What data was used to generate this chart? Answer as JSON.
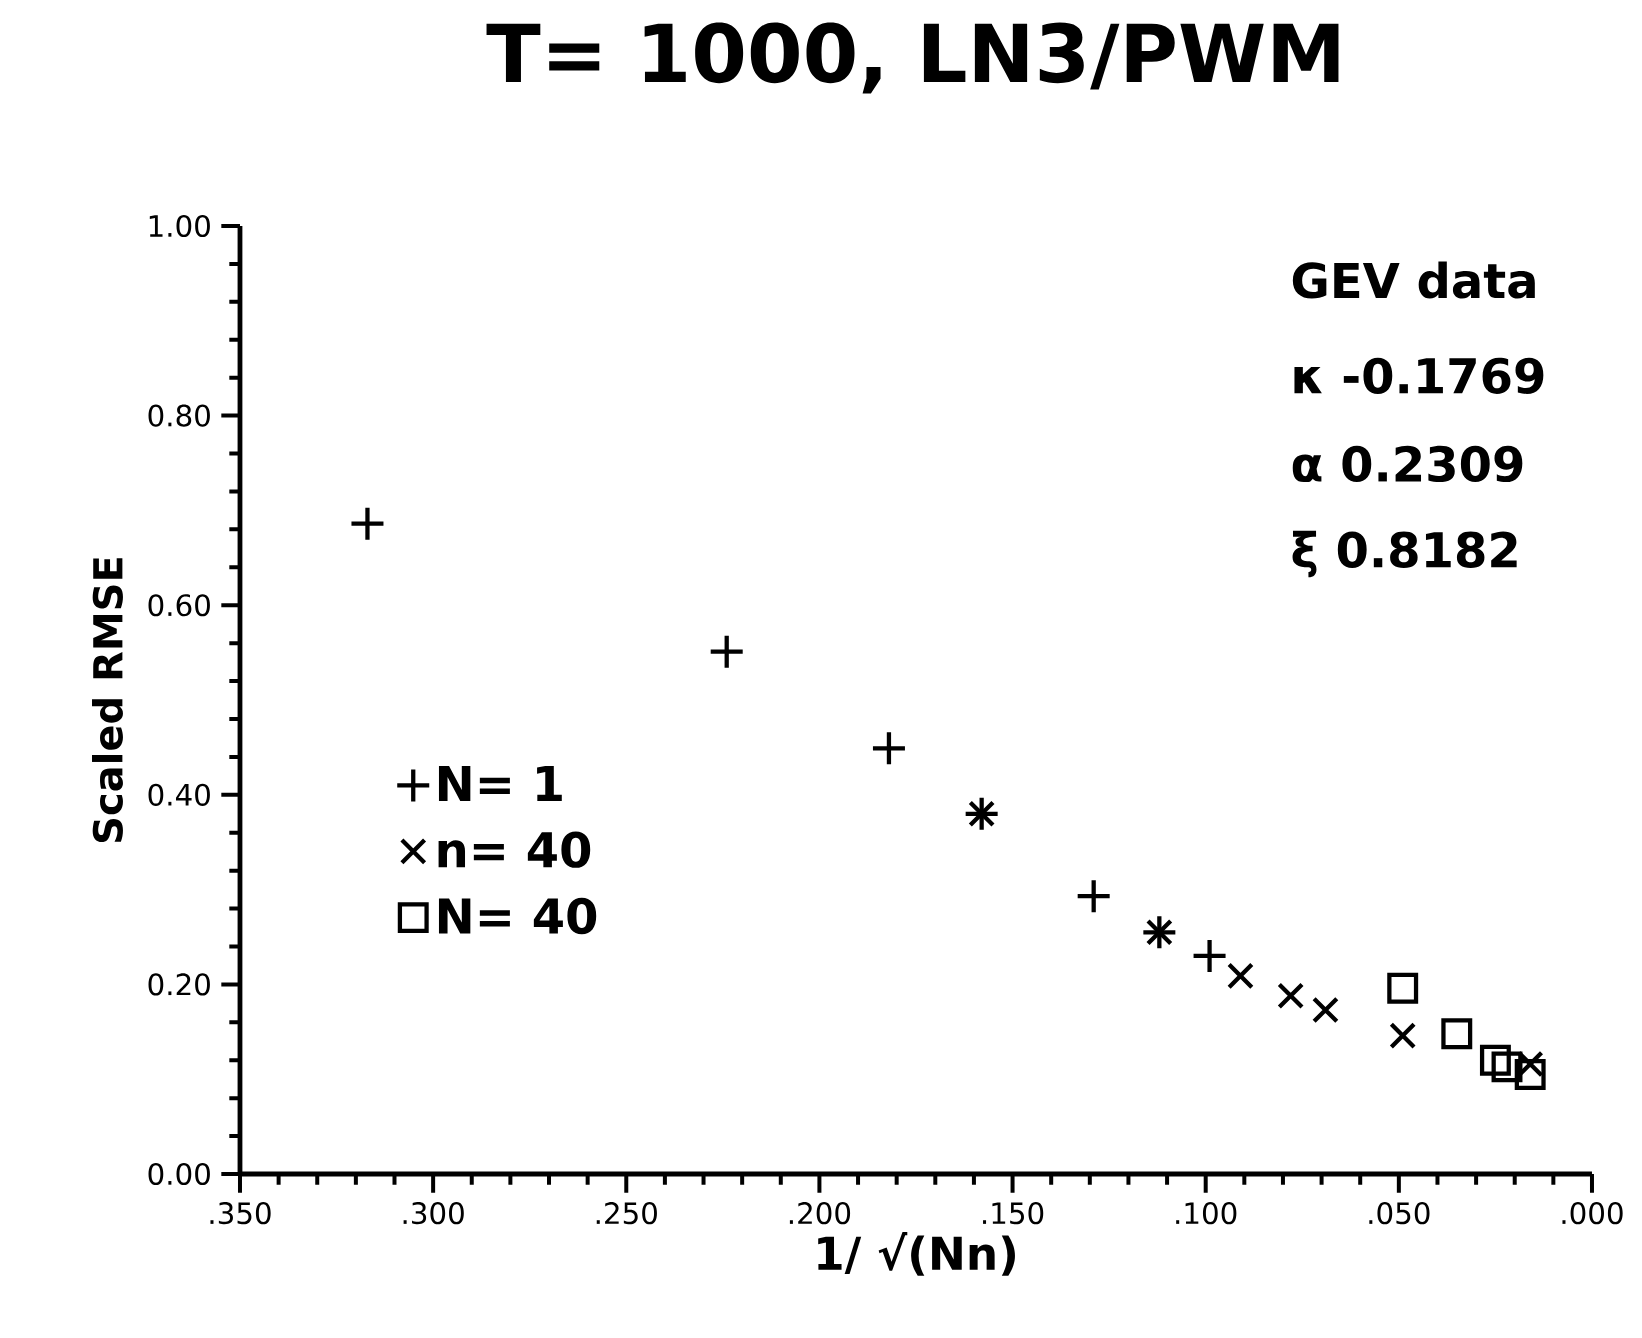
{
  "chart_data": {
    "type": "scatter",
    "title": "T= 1000,  LN3/PWM",
    "xlabel": "1/ √(Nn)",
    "ylabel": "Scaled RMSE",
    "annotations": [
      "GEV data",
      "κ -0.1769",
      "α  0.2309",
      "ξ  0.8182"
    ],
    "series": [
      {
        "name": "N= 1",
        "color": "#000000",
        "marker": "plus",
        "x": [
          0.317,
          0.224,
          0.182,
          0.158,
          0.129,
          0.112,
          0.099
        ],
        "values": [
          0.686,
          0.551,
          0.449,
          0.38,
          0.293,
          0.255,
          0.23
        ]
      },
      {
        "name": "n= 40",
        "color": "#000000",
        "marker": "cross",
        "x": [
          0.158,
          0.112,
          0.091,
          0.078,
          0.069,
          0.049,
          0.016
        ],
        "values": [
          0.38,
          0.255,
          0.209,
          0.188,
          0.173,
          0.146,
          0.116
        ]
      },
      {
        "name": "N= 40",
        "color": "#000000",
        "marker": "square",
        "x": [
          0.049,
          0.035,
          0.025,
          0.022,
          0.016
        ],
        "values": [
          0.196,
          0.148,
          0.12,
          0.113,
          0.105
        ]
      }
    ],
    "xlim": [
      0.35,
      0.0
    ],
    "ylim": [
      0.0,
      1.0
    ],
    "xticks": [
      {
        "value": 0.35,
        "label": ".350"
      },
      {
        "value": 0.3,
        "label": ".300"
      },
      {
        "value": 0.25,
        "label": ".250"
      },
      {
        "value": 0.2,
        "label": ".200"
      },
      {
        "value": 0.15,
        "label": ".150"
      },
      {
        "value": 0.1,
        "label": ".100"
      },
      {
        "value": 0.05,
        "label": ".050"
      },
      {
        "value": 0.0,
        "label": ".000"
      }
    ],
    "yticks": [
      {
        "value": 0.0,
        "label": "0.00"
      },
      {
        "value": 0.2,
        "label": "0.20"
      },
      {
        "value": 0.4,
        "label": "0.40"
      },
      {
        "value": 0.6,
        "label": "0.60"
      },
      {
        "value": 0.8,
        "label": "0.80"
      },
      {
        "value": 1.0,
        "label": "1.00"
      }
    ],
    "grid": false,
    "legend": "left"
  }
}
